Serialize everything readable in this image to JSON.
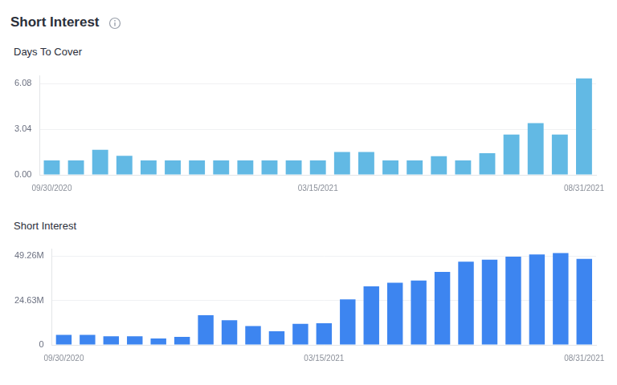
{
  "title": "Short Interest",
  "chart_data": [
    {
      "type": "bar",
      "title": "Days To Cover",
      "categories": [
        "09/30/2020",
        null,
        null,
        null,
        null,
        null,
        null,
        null,
        null,
        null,
        null,
        "03/15/2021",
        null,
        null,
        null,
        null,
        null,
        null,
        null,
        null,
        null,
        null,
        "08/31/2021"
      ],
      "values": [
        0.96,
        0.96,
        1.67,
        1.27,
        0.96,
        0.96,
        0.96,
        0.96,
        0.96,
        0.96,
        0.96,
        0.96,
        1.52,
        1.52,
        0.96,
        0.96,
        1.25,
        0.96,
        1.45,
        2.69,
        3.45,
        2.69,
        6.43
      ],
      "color": "#62b9e4",
      "ylim": [
        0,
        6.6
      ],
      "yticks": [
        {
          "value": 0,
          "label": "0.00"
        },
        3.04,
        6.08
      ],
      "grid": true
    },
    {
      "type": "bar",
      "title": "Short Interest",
      "categories": [
        "09/30/2020",
        null,
        null,
        null,
        null,
        null,
        null,
        null,
        null,
        null,
        null,
        "03/15/2021",
        null,
        null,
        null,
        null,
        null,
        null,
        null,
        null,
        null,
        null,
        "08/31/2021"
      ],
      "values": [
        5.6,
        5.6,
        4.8,
        4.8,
        3.6,
        4.4,
        16.4,
        13.6,
        10.4,
        7.6,
        11.6,
        12.0,
        25.2,
        32.4,
        34.4,
        35.6,
        40.4,
        46.0,
        47.2,
        48.8,
        50.0,
        50.8,
        47.6
      ],
      "color": "#3d85f0",
      "ylim": [
        0,
        53
      ],
      "yticks": [
        0,
        {
          "value": 24.63,
          "label": "24.63M"
        },
        {
          "value": 49.26,
          "label": "49.26M"
        }
      ],
      "grid": true
    }
  ]
}
